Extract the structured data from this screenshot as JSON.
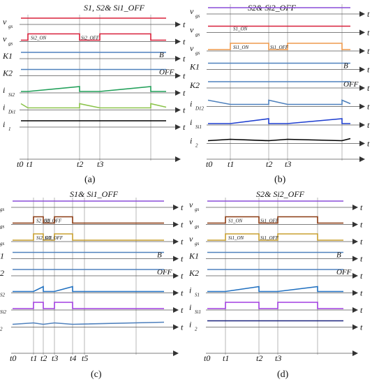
{
  "panels": [
    {
      "id": "a",
      "caption": "(a)",
      "header": "S1, S2& Si1_OFF",
      "rows": [
        {
          "sym": "v",
          "sub": "gs",
          "color": "#d8203a",
          "kind": "flat"
        },
        {
          "sym": "v",
          "sub": "gs",
          "color": "#d8203a",
          "kind": "pulse",
          "labels": [
            "Si2_ON",
            "Si2_OFF"
          ]
        },
        {
          "sym": "K1",
          "sub": "",
          "color": "#4f81bd",
          "kind": "flat",
          "tag": "B"
        },
        {
          "sym": "K2",
          "sub": "",
          "color": "#4f81bd",
          "kind": "flat",
          "tag": "OFF"
        },
        {
          "sym": "i",
          "sub": "Si2",
          "color": "#22a05a",
          "kind": "ramp-up"
        },
        {
          "sym": "i",
          "sub": "Di1",
          "color": "#8bc34a",
          "kind": "ramp-down"
        },
        {
          "sym": "i",
          "sub": "1",
          "color": "#000000",
          "kind": "flat"
        }
      ],
      "time_labels": [
        "t0",
        "t1",
        "t2",
        "t3"
      ]
    },
    {
      "id": "b",
      "caption": "(b)",
      "header": "S2& Si2_OFF",
      "rows": [
        {
          "sym": "v",
          "sub": "gs",
          "color": "#8a4bd8",
          "kind": "flat"
        },
        {
          "sym": "v",
          "sub": "gs",
          "color": "#d8203a",
          "kind": "flat",
          "labels": [
            "S1_ON"
          ]
        },
        {
          "sym": "v",
          "sub": "gs",
          "color": "#ee9a4d",
          "kind": "pulse",
          "labels": [
            "Si1_ON",
            "Si1_OFF"
          ]
        },
        {
          "sym": "K1",
          "sub": "",
          "color": "#4f81bd",
          "kind": "flat",
          "tag": "B"
        },
        {
          "sym": "K2",
          "sub": "",
          "color": "#4f81bd",
          "kind": "flat",
          "tag": "OFF"
        },
        {
          "sym": "i",
          "sub": "D12",
          "color": "#4f81bd",
          "kind": "ramp-down"
        },
        {
          "sym": "i",
          "sub": "Si1",
          "color": "#1f3fd0",
          "kind": "ramp-up"
        },
        {
          "sym": "i",
          "sub": "2",
          "color": "#000000",
          "kind": "tri"
        }
      ],
      "time_labels": [
        "t0",
        "t1",
        "t2",
        "t3"
      ]
    },
    {
      "id": "c",
      "caption": "(c)",
      "header": "S1& Si1_OFF",
      "rows": [
        {
          "sym": "v",
          "sub": "gs",
          "color": "#8a4bd8",
          "kind": "flat"
        },
        {
          "sym": "v",
          "sub": "gs",
          "color": "#8b3a12",
          "kind": "pulse",
          "labels": [
            "S2_ON",
            "S2_OFF"
          ]
        },
        {
          "sym": "v",
          "sub": "gs",
          "color": "#c8a030",
          "kind": "pulse",
          "labels": [
            "Si2_ON",
            "Si2_OFF"
          ]
        },
        {
          "sym": "K1",
          "sub": "",
          "color": "#4f81bd",
          "kind": "flat",
          "tag": "B"
        },
        {
          "sym": "K2",
          "sub": "",
          "color": "#4f81bd",
          "kind": "flat",
          "tag": "OFF"
        },
        {
          "sym": "i",
          "sub": "S2",
          "color": "#1f6fbf",
          "kind": "ramp-up"
        },
        {
          "sym": "i",
          "sub": "Si2",
          "color": "#a23fe0",
          "kind": "pulse"
        },
        {
          "sym": "i",
          "sub": "2",
          "color": "#4f81bd",
          "kind": "tri"
        }
      ],
      "time_labels": [
        "t0",
        "t1",
        "t2",
        "t3",
        "t4",
        "t5"
      ]
    },
    {
      "id": "d",
      "caption": "(d)",
      "header": "S2& Si2_OFF",
      "rows": [
        {
          "sym": "v",
          "sub": "gs",
          "color": "#8a4bd8",
          "kind": "flat"
        },
        {
          "sym": "v",
          "sub": "gs",
          "color": "#8b3a12",
          "kind": "pulse",
          "labels": [
            "S1_ON",
            "Si1_OFF"
          ]
        },
        {
          "sym": "v",
          "sub": "gs",
          "color": "#c8a030",
          "kind": "pulse",
          "labels": [
            "Si1_ON",
            "Si1_OFF"
          ]
        },
        {
          "sym": "K1",
          "sub": "",
          "color": "#4f81bd",
          "kind": "flat",
          "tag": "B"
        },
        {
          "sym": "K2",
          "sub": "",
          "color": "#4f81bd",
          "kind": "flat",
          "tag": "OFF"
        },
        {
          "sym": "i",
          "sub": "S1",
          "color": "#1f6fbf",
          "kind": "ramp-up"
        },
        {
          "sym": "i",
          "sub": "Si1",
          "color": "#a23fe0",
          "kind": "pulse"
        },
        {
          "sym": "i",
          "sub": "2",
          "color": "#1a237e",
          "kind": "flat"
        }
      ],
      "time_labels": [
        "t0",
        "t1",
        "t2",
        "t3"
      ]
    }
  ],
  "axis_label": "t"
}
